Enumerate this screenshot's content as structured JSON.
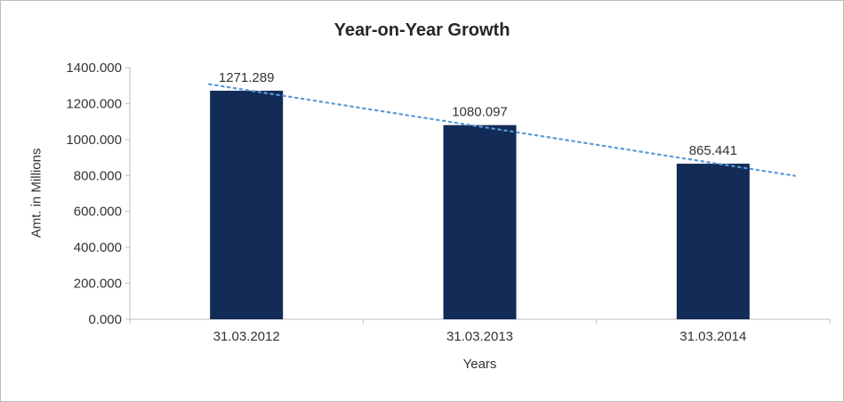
{
  "chart_data": {
    "type": "bar",
    "title": "Year-on-Year Growth",
    "xlabel": "Years",
    "ylabel": "Amt. in Millions",
    "categories": [
      "31.03.2012",
      "31.03.2013",
      "31.03.2014"
    ],
    "values": [
      1271.289,
      1080.097,
      865.441
    ],
    "data_labels": [
      "1271.289",
      "1080.097",
      "865.441"
    ],
    "ylim": [
      0,
      1400
    ],
    "ytick_step": 200,
    "ytick_labels": [
      "0.000",
      "200.000",
      "400.000",
      "600.000",
      "800.000",
      "1000.000",
      "1200.000",
      "1400.000"
    ],
    "grid": false,
    "legend": "none",
    "bar_color": "#122B57",
    "trendline": {
      "type": "linear",
      "style": "dotted",
      "color": "#5B9BD5"
    },
    "axis_color": "#BFBFBF",
    "text_color": "#333333",
    "title_color": "#262626",
    "frame_border_color": "#BDBDBD"
  }
}
